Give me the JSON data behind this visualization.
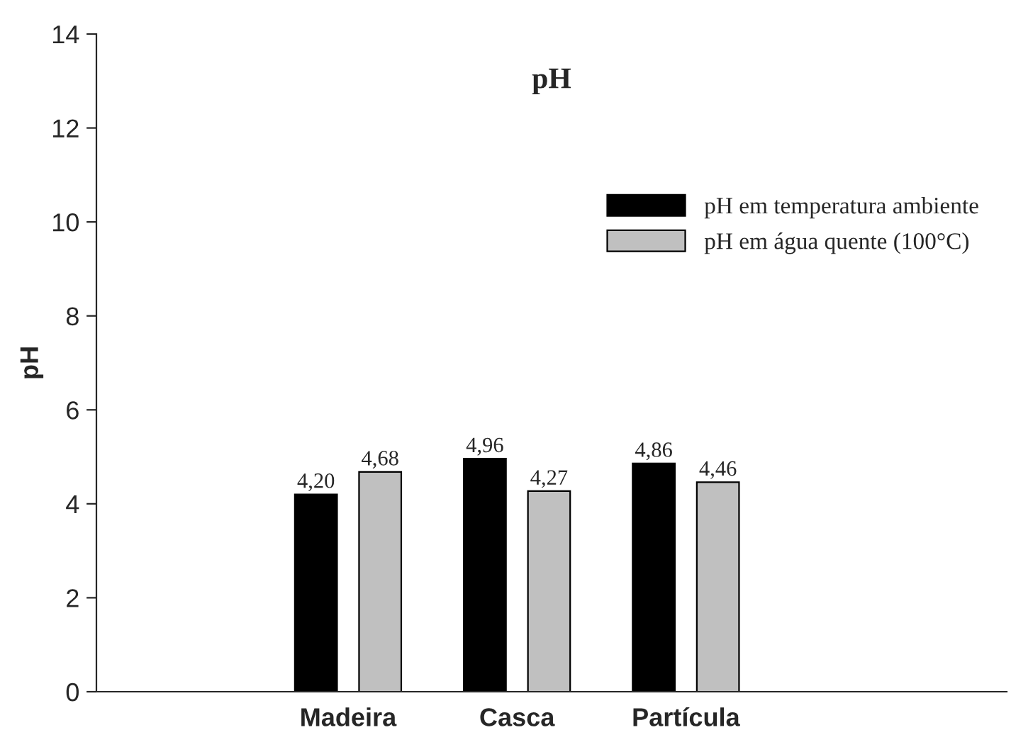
{
  "chart_data": {
    "type": "bar",
    "title": "pH",
    "ylabel": "pH",
    "categories": [
      "Madeira",
      "Casca",
      "Partícula"
    ],
    "series": [
      {
        "name": "pH em temperatura ambiente",
        "color": "#000000",
        "values": [
          4.2,
          4.96,
          4.86
        ],
        "value_labels": [
          "4,20",
          "4,96",
          "4,86"
        ]
      },
      {
        "name": "pH em água quente (100°C)",
        "color": "#c0c0c0",
        "values": [
          4.68,
          4.27,
          4.46
        ],
        "value_labels": [
          "4,68",
          "4,27",
          "4,46"
        ]
      }
    ],
    "ylim": [
      0,
      14
    ],
    "yticks": [
      0,
      2,
      4,
      6,
      8,
      10,
      12,
      14
    ],
    "legend": "top right",
    "grid": false
  }
}
